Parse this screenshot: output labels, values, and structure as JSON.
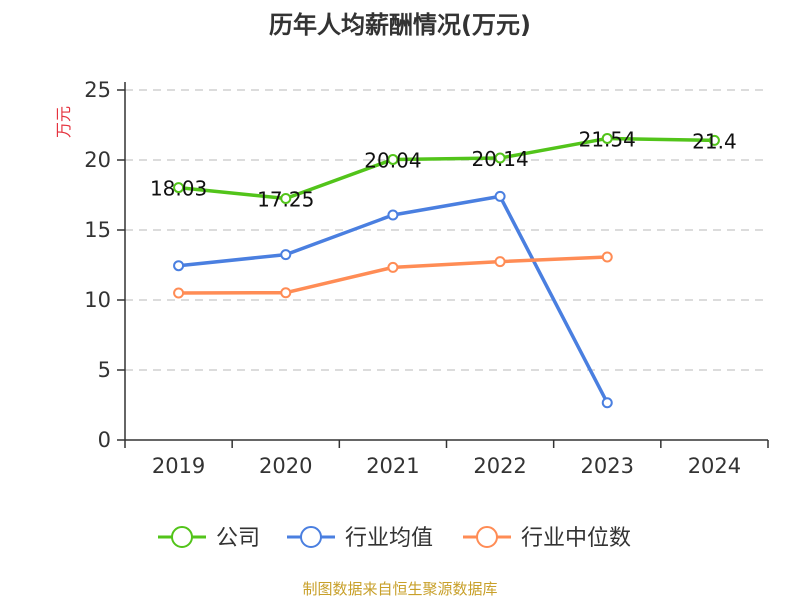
{
  "chart_data": {
    "type": "line",
    "title": "历年人均薪酬情况(万元)",
    "ylabel": "万元",
    "xlabel": "",
    "categories": [
      "2019",
      "2020",
      "2021",
      "2022",
      "2023",
      "2024"
    ],
    "ylim": [
      0,
      25
    ],
    "yticks": [
      "0",
      "5",
      "10",
      "15",
      "20",
      "25"
    ],
    "grid": true,
    "legend_position": "bottom",
    "series": [
      {
        "name": "公司",
        "color": "#52c41a",
        "values": [
          18.03,
          17.25,
          20.04,
          20.14,
          21.54,
          21.4
        ],
        "labels": [
          "18.03",
          "17.25",
          "20.04",
          "20.14",
          "21.54",
          "21.4"
        ]
      },
      {
        "name": "行业均值",
        "color": "#4a7fe0",
        "values": [
          12.45,
          13.24,
          16.07,
          17.4,
          2.66,
          null
        ]
      },
      {
        "name": "行业中位数",
        "color": "#ff8c55",
        "values": [
          10.5,
          10.52,
          12.33,
          12.74,
          13.07,
          null
        ]
      }
    ],
    "source": "制图数据来自恒生聚源数据库"
  }
}
